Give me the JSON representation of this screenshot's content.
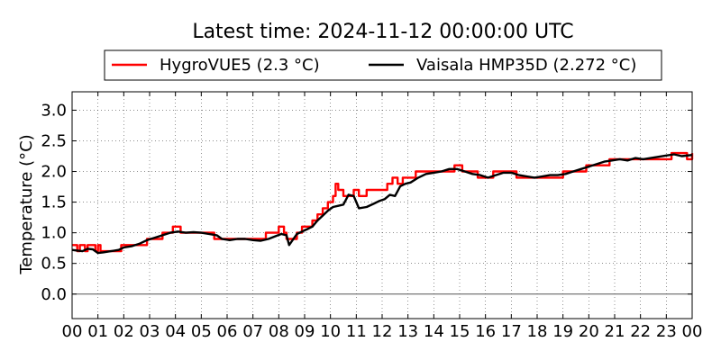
{
  "chart_data": {
    "type": "line",
    "title": "Latest time: 2024-11-12 00:00:00 UTC",
    "xlabel": "",
    "ylabel": "Temperature (°C)",
    "xlim": [
      0,
      24
    ],
    "ylim": [
      -0.4,
      3.3
    ],
    "x_ticks": [
      0,
      1,
      2,
      3,
      4,
      5,
      6,
      7,
      8,
      9,
      10,
      11,
      12,
      13,
      14,
      15,
      16,
      17,
      18,
      19,
      20,
      21,
      22,
      23,
      24
    ],
    "x_tick_labels": [
      "00",
      "01",
      "02",
      "03",
      "04",
      "05",
      "06",
      "07",
      "08",
      "09",
      "10",
      "11",
      "12",
      "13",
      "14",
      "15",
      "16",
      "17",
      "18",
      "19",
      "20",
      "21",
      "22",
      "23",
      "00"
    ],
    "y_ticks": [
      0.0,
      0.5,
      1.0,
      1.5,
      2.0,
      2.5,
      3.0
    ],
    "y_tick_labels": [
      "0.0",
      "0.5",
      "1.0",
      "1.5",
      "2.0",
      "2.5",
      "3.0"
    ],
    "grid": true,
    "zero_line": true,
    "legend_position": "top-center",
    "series": [
      {
        "name": "HygroVUE5 (2.3 °C)",
        "color": "#ff0000",
        "step": true,
        "x": [
          0,
          0.2,
          0.3,
          0.5,
          0.6,
          0.9,
          1.0,
          1.1,
          1.5,
          1.9,
          2.0,
          2.5,
          2.9,
          3.2,
          3.5,
          3.7,
          3.9,
          4.2,
          4.5,
          4.9,
          5.2,
          5.5,
          5.8,
          6.1,
          6.4,
          6.8,
          7.1,
          7.5,
          7.8,
          8.0,
          8.2,
          8.3,
          8.5,
          8.7,
          8.9,
          9.1,
          9.3,
          9.5,
          9.7,
          9.9,
          10.1,
          10.2,
          10.3,
          10.5,
          10.7,
          10.9,
          11.1,
          11.4,
          11.7,
          12.0,
          12.2,
          12.4,
          12.6,
          12.8,
          13.0,
          13.3,
          13.6,
          13.9,
          14.2,
          14.5,
          14.8,
          15.1,
          15.4,
          15.7,
          16.0,
          16.3,
          16.6,
          16.9,
          17.2,
          17.5,
          17.8,
          18.1,
          18.4,
          18.7,
          19.0,
          19.3,
          19.6,
          19.9,
          20.2,
          20.5,
          20.8,
          21.1,
          21.4,
          21.7,
          22.0,
          22.3,
          22.6,
          22.9,
          23.2,
          23.5,
          23.8,
          24.0
        ],
        "y": [
          0.8,
          0.7,
          0.8,
          0.7,
          0.8,
          0.7,
          0.8,
          0.7,
          0.7,
          0.8,
          0.8,
          0.8,
          0.9,
          0.9,
          1.0,
          1.0,
          1.1,
          1.0,
          1.0,
          1.0,
          1.0,
          0.9,
          0.9,
          0.9,
          0.9,
          0.9,
          0.9,
          1.0,
          1.0,
          1.1,
          1.0,
          0.9,
          0.9,
          1.0,
          1.1,
          1.1,
          1.2,
          1.3,
          1.4,
          1.5,
          1.6,
          1.8,
          1.7,
          1.6,
          1.6,
          1.7,
          1.6,
          1.7,
          1.7,
          1.7,
          1.8,
          1.9,
          1.8,
          1.9,
          1.9,
          2.0,
          2.0,
          2.0,
          2.0,
          2.0,
          2.1,
          2.0,
          2.0,
          1.9,
          1.9,
          2.0,
          2.0,
          2.0,
          1.9,
          1.9,
          1.9,
          1.9,
          1.9,
          1.9,
          2.0,
          2.0,
          2.0,
          2.1,
          2.1,
          2.1,
          2.2,
          2.2,
          2.2,
          2.2,
          2.2,
          2.2,
          2.2,
          2.2,
          2.3,
          2.3,
          2.2,
          2.3
        ]
      },
      {
        "name": "Vaisala HMP35D (2.272 °C)",
        "color": "#000000",
        "step": false,
        "x": [
          0,
          0.2,
          0.4,
          0.6,
          0.8,
          1.0,
          1.2,
          1.5,
          1.8,
          2.0,
          2.3,
          2.6,
          2.9,
          3.2,
          3.5,
          3.8,
          4.1,
          4.4,
          4.7,
          5.0,
          5.3,
          5.6,
          5.8,
          6.1,
          6.4,
          6.7,
          7.0,
          7.3,
          7.6,
          7.9,
          8.1,
          8.3,
          8.4,
          8.5,
          8.7,
          8.9,
          9.1,
          9.3,
          9.5,
          9.7,
          9.9,
          10.1,
          10.3,
          10.5,
          10.7,
          10.9,
          11.1,
          11.4,
          11.7,
          11.9,
          12.1,
          12.3,
          12.5,
          12.7,
          12.9,
          13.1,
          13.4,
          13.7,
          14.0,
          14.3,
          14.6,
          14.9,
          15.2,
          15.5,
          15.8,
          16.1,
          16.4,
          16.7,
          17.0,
          17.3,
          17.6,
          17.9,
          18.2,
          18.5,
          18.8,
          19.1,
          19.4,
          19.7,
          20.0,
          20.3,
          20.6,
          20.9,
          21.2,
          21.5,
          21.8,
          22.1,
          22.4,
          22.7,
          23.0,
          23.3,
          23.6,
          24.0
        ],
        "y": [
          0.72,
          0.71,
          0.7,
          0.74,
          0.73,
          0.67,
          0.68,
          0.7,
          0.72,
          0.76,
          0.78,
          0.82,
          0.88,
          0.92,
          0.96,
          1.0,
          1.02,
          1.0,
          1.01,
          1.0,
          0.98,
          0.96,
          0.9,
          0.88,
          0.9,
          0.9,
          0.88,
          0.87,
          0.9,
          0.95,
          0.98,
          0.96,
          0.8,
          0.86,
          0.98,
          1.02,
          1.06,
          1.1,
          1.2,
          1.28,
          1.36,
          1.42,
          1.44,
          1.46,
          1.62,
          1.6,
          1.4,
          1.42,
          1.48,
          1.52,
          1.55,
          1.62,
          1.6,
          1.76,
          1.8,
          1.82,
          1.9,
          1.96,
          1.98,
          2.0,
          2.04,
          2.04,
          2.0,
          1.96,
          1.94,
          1.9,
          1.94,
          1.98,
          1.98,
          1.94,
          1.92,
          1.9,
          1.92,
          1.94,
          1.94,
          1.96,
          2.0,
          2.04,
          2.08,
          2.12,
          2.16,
          2.18,
          2.2,
          2.18,
          2.22,
          2.2,
          2.22,
          2.24,
          2.26,
          2.28,
          2.25,
          2.27
        ]
      }
    ]
  }
}
